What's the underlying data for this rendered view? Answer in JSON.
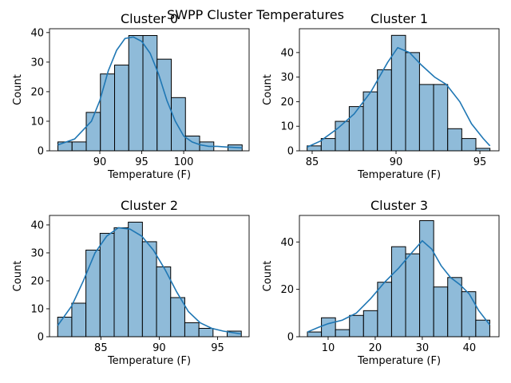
{
  "title": "SWPP Cluster Temperatures",
  "chart_data": [
    {
      "type": "histogram",
      "title": "Cluster 0",
      "xlabel": "Temperature (F)",
      "ylabel": "Count",
      "bins": [
        85.0,
        86.69,
        88.38,
        90.07,
        91.76,
        93.45,
        95.14,
        96.83,
        98.52,
        100.21,
        101.9,
        103.59,
        105.28,
        106.97
      ],
      "counts": [
        3,
        3,
        13,
        26,
        29,
        39,
        39,
        31,
        18,
        5,
        3,
        0,
        2
      ],
      "color": "#8fbbd9",
      "edgecolor": "#000000",
      "kde": {
        "color": "#1f77b4",
        "x": [
          85,
          87,
          89,
          90,
          91,
          92,
          93,
          94,
          95,
          96,
          97,
          98,
          99,
          100,
          101,
          102,
          103,
          104,
          105,
          106.97
        ],
        "y": [
          2,
          4,
          10,
          17,
          27,
          34,
          38,
          38.5,
          37,
          33,
          26,
          17,
          10,
          5,
          3,
          2,
          1.5,
          1.5,
          1.3,
          1
        ]
      },
      "xlim": [
        84.0,
        107.8
      ],
      "ylim": [
        0,
        41.3
      ],
      "xticks": [
        90,
        95,
        100
      ],
      "yticks": [
        0,
        10,
        20,
        30,
        40
      ]
    },
    {
      "type": "histogram",
      "title": "Cluster 1",
      "xlabel": "Temperature (F)",
      "ylabel": "Count",
      "bins": [
        84.7,
        85.54,
        86.38,
        87.21,
        88.05,
        88.89,
        89.73,
        90.57,
        91.4,
        92.24,
        93.08,
        93.92,
        94.76,
        95.6
      ],
      "counts": [
        2,
        5,
        12,
        18,
        24,
        33,
        47,
        40,
        27,
        27,
        9,
        5,
        1
      ],
      "color": "#8fbbd9",
      "edgecolor": "#000000",
      "kde": {
        "color": "#1f77b4",
        "x": [
          84.7,
          85.5,
          86.5,
          87.5,
          88.5,
          89.5,
          90.1,
          90.8,
          91.5,
          92.3,
          93.0,
          93.8,
          94.5,
          95.2,
          95.6
        ],
        "y": [
          1.5,
          4,
          9,
          15,
          24,
          36,
          42,
          40,
          35,
          30,
          27,
          20,
          11,
          5,
          2
        ]
      },
      "xlim": [
        84.24,
        96.14
      ],
      "ylim": [
        0,
        49.7
      ],
      "xticks": [
        85,
        90,
        95
      ],
      "yticks": [
        0,
        10,
        20,
        30,
        40
      ]
    },
    {
      "type": "histogram",
      "title": "Cluster 2",
      "xlabel": "Temperature (F)",
      "ylabel": "Count",
      "bins": [
        81.3,
        82.51,
        83.72,
        84.93,
        86.14,
        87.35,
        88.56,
        89.77,
        90.98,
        92.19,
        93.4,
        94.61,
        95.82,
        97.03
      ],
      "counts": [
        7,
        12,
        31,
        37,
        39,
        41,
        34,
        25,
        14,
        5,
        3,
        0,
        2
      ],
      "color": "#8fbbd9",
      "edgecolor": "#000000",
      "kde": {
        "color": "#1f77b4",
        "x": [
          81.3,
          82.5,
          83.5,
          84.5,
          85.5,
          86.5,
          87.5,
          88.5,
          89.5,
          90.5,
          91.5,
          92.5,
          93.5,
          94.5,
          95.5,
          97.0
        ],
        "y": [
          4,
          11,
          20,
          30,
          36,
          39,
          38.5,
          36,
          31,
          24,
          16,
          9,
          5,
          3,
          2,
          1
        ]
      },
      "xlim": [
        80.6,
        97.7
      ],
      "ylim": [
        0,
        43.4
      ],
      "xticks": [
        85,
        90,
        95
      ],
      "yticks": [
        0,
        10,
        20,
        30,
        40
      ]
    },
    {
      "type": "histogram",
      "title": "Cluster 3",
      "xlabel": "Temperature (F)",
      "ylabel": "Count",
      "bins": [
        5.6,
        8.58,
        11.56,
        14.54,
        17.52,
        20.5,
        23.48,
        26.46,
        29.44,
        32.42,
        35.4,
        38.38,
        41.36,
        44.34
      ],
      "counts": [
        2,
        8,
        3,
        9,
        11,
        23,
        38,
        35,
        49,
        21,
        25,
        19,
        7
      ],
      "color": "#8fbbd9",
      "edgecolor": "#000000",
      "kde": {
        "color": "#1f77b4",
        "x": [
          5.6,
          8,
          10,
          13,
          16,
          19,
          22,
          25,
          28,
          30,
          32,
          34,
          36,
          38,
          40,
          42,
          44.34
        ],
        "y": [
          2,
          4,
          5.5,
          7,
          10,
          16,
          23,
          29,
          36,
          40.5,
          37,
          30,
          25,
          22,
          18,
          11,
          5
        ]
      },
      "xlim": [
        3.9,
        46.3
      ],
      "ylim": [
        0,
        51.2
      ],
      "xticks": [
        10,
        20,
        30,
        40
      ],
      "yticks": [
        0,
        20,
        40
      ]
    }
  ]
}
